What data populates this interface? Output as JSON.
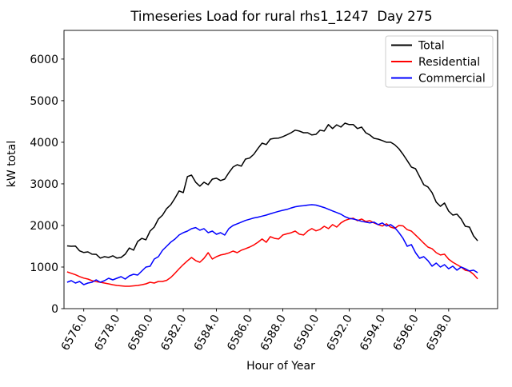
{
  "chart_data": {
    "type": "line",
    "title": "Timeseries Load for rural rhs1_1247  Day 275",
    "xlabel": "Hour of Year",
    "ylabel": "kW total",
    "grid": false,
    "legend_position": "upper right",
    "xlim": [
      6574.81,
      6600.95
    ],
    "ylim": [
      0,
      6690
    ],
    "x_ticks": {
      "values": [
        6576,
        6578,
        6580,
        6582,
        6584,
        6586,
        6588,
        6590,
        6592,
        6594,
        6596,
        6598
      ],
      "labels": [
        "6576.0",
        "6578.0",
        "6580.0",
        "6582.0",
        "6584.0",
        "6586.0",
        "6588.0",
        "6590.0",
        "6592.0",
        "6594.0",
        "6596.0",
        "6598.0"
      ]
    },
    "y_ticks": {
      "values": [
        0,
        1000,
        2000,
        3000,
        4000,
        5000,
        6000
      ],
      "labels": [
        "0",
        "1000",
        "2000",
        "3000",
        "4000",
        "5000",
        "6000"
      ]
    },
    "x_start": 6575.0,
    "x_step": 0.25,
    "series": [
      {
        "name": "Total",
        "color": "#000000",
        "values": [
          1510,
          1500,
          1505,
          1390,
          1350,
          1365,
          1310,
          1305,
          1215,
          1250,
          1230,
          1270,
          1215,
          1230,
          1310,
          1460,
          1405,
          1615,
          1690,
          1655,
          1865,
          1960,
          2155,
          2250,
          2405,
          2500,
          2655,
          2830,
          2790,
          3175,
          3210,
          3040,
          2945,
          3040,
          2980,
          3115,
          3135,
          3080,
          3115,
          3270,
          3405,
          3460,
          3425,
          3595,
          3620,
          3710,
          3850,
          3980,
          3945,
          4075,
          4095,
          4100,
          4135,
          4180,
          4230,
          4290,
          4270,
          4230,
          4230,
          4175,
          4190,
          4290,
          4270,
          4425,
          4330,
          4420,
          4365,
          4460,
          4425,
          4425,
          4330,
          4365,
          4230,
          4175,
          4095,
          4075,
          4040,
          4000,
          4000,
          3940,
          3845,
          3710,
          3560,
          3405,
          3365,
          3175,
          2980,
          2925,
          2790,
          2560,
          2460,
          2540,
          2345,
          2250,
          2270,
          2155,
          1980,
          1960,
          1750,
          1630
        ]
      },
      {
        "name": "Residential",
        "color": "#ff0000",
        "values": [
          885,
          850,
          815,
          770,
          735,
          712,
          673,
          650,
          635,
          615,
          596,
          575,
          558,
          548,
          538,
          538,
          548,
          558,
          575,
          596,
          635,
          615,
          654,
          654,
          680,
          750,
          850,
          960,
          1060,
          1150,
          1230,
          1155,
          1115,
          1210,
          1345,
          1192,
          1250,
          1290,
          1310,
          1340,
          1385,
          1345,
          1405,
          1440,
          1480,
          1530,
          1595,
          1675,
          1595,
          1730,
          1690,
          1675,
          1770,
          1800,
          1825,
          1865,
          1790,
          1770,
          1865,
          1925,
          1870,
          1905,
          1980,
          1925,
          2020,
          1960,
          2060,
          2120,
          2155,
          2175,
          2115,
          2155,
          2095,
          2115,
          2060,
          2020,
          1985,
          2040,
          1960,
          1930,
          2000,
          1990,
          1900,
          1865,
          1770,
          1675,
          1575,
          1480,
          1440,
          1345,
          1290,
          1310,
          1190,
          1115,
          1058,
          1000,
          923,
          904,
          827,
          715
        ]
      },
      {
        "name": "Commercial",
        "color": "#0000ff",
        "values": [
          635,
          673,
          615,
          654,
          577,
          615,
          635,
          692,
          635,
          673,
          731,
          692,
          731,
          769,
          712,
          788,
          827,
          808,
          904,
          1000,
          1019,
          1192,
          1250,
          1404,
          1500,
          1600,
          1673,
          1770,
          1827,
          1865,
          1923,
          1950,
          1885,
          1923,
          1827,
          1865,
          1788,
          1827,
          1769,
          1925,
          2000,
          2040,
          2080,
          2120,
          2150,
          2180,
          2200,
          2225,
          2250,
          2280,
          2310,
          2340,
          2365,
          2385,
          2420,
          2450,
          2465,
          2475,
          2490,
          2500,
          2490,
          2460,
          2430,
          2390,
          2350,
          2310,
          2270,
          2210,
          2170,
          2155,
          2130,
          2100,
          2080,
          2060,
          2080,
          2020,
          2060,
          1985,
          2020,
          1950,
          1830,
          1690,
          1500,
          1540,
          1345,
          1212,
          1250,
          1155,
          1020,
          1095,
          1000,
          1058,
          960,
          1020,
          925,
          1000,
          960,
          905,
          925,
          865
        ]
      }
    ],
    "legend_border_color": "#cccccc",
    "axis_color": "#000000"
  }
}
